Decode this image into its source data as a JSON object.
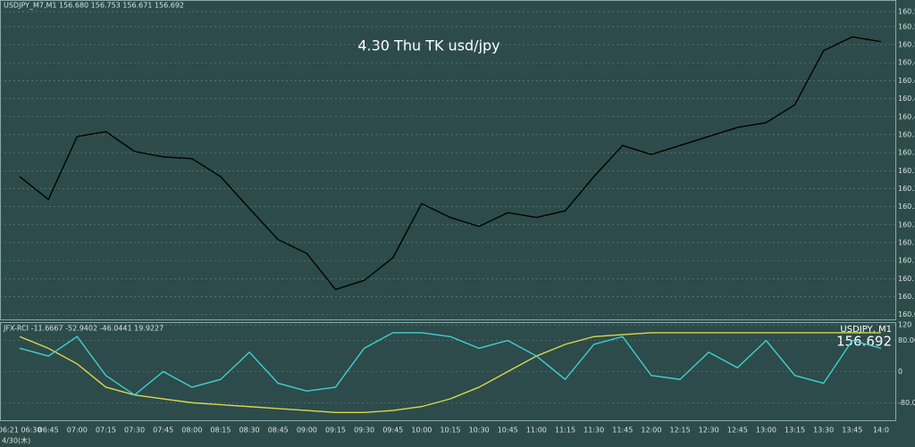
{
  "chart_data": [
    {
      "type": "line",
      "title": "USDJPY_M7,M1  156.680 156.753 156.671 156.692",
      "annotation": "4.30 Thu TK usd/jpy",
      "date_label": "4/30(木)",
      "categories": [
        "06:21 06:30",
        "06:45",
        "07:00",
        "07:15",
        "07:30",
        "07:45",
        "08:00",
        "08:15",
        "08:30",
        "08:45",
        "09:00",
        "09:15",
        "09:30",
        "09:45",
        "10:00",
        "10:15",
        "10:30",
        "10:45",
        "11:00",
        "11:15",
        "11:30",
        "11:45",
        "12:00",
        "12:15",
        "12:30",
        "12:45",
        "13:00",
        "13:15",
        "13:30",
        "13:45",
        "14:0"
      ],
      "series": [
        {
          "color": "#000000",
          "values": [
            160.305,
            160.267,
            160.372,
            160.38,
            160.347,
            160.338,
            160.335,
            160.305,
            160.252,
            160.2,
            160.177,
            160.117,
            160.132,
            160.17,
            160.26,
            160.237,
            160.222,
            160.245,
            160.237,
            160.248,
            160.305,
            160.357,
            160.342,
            160.357,
            160.372,
            160.387,
            160.395,
            160.425,
            160.515,
            160.538,
            160.53
          ]
        }
      ],
      "ylim": [
        160.067,
        160.598
      ],
      "yticks": [
        {
          "value": 160.58,
          "label": "160.580"
        },
        160.555,
        160.525,
        160.495,
        160.465,
        160.435,
        160.405,
        160.375,
        160.345,
        160.315,
        160.285,
        160.255,
        160.225,
        160.195,
        160.165,
        160.135,
        160.105,
        160.075
      ],
      "grid": true
    },
    {
      "type": "line",
      "title": "JFX-RCI -11.6667 -52.9402 -46.0441 19.9227",
      "symbol_label": "USDJPY, M1",
      "last_price": 156.692,
      "series": [
        {
          "color": "#d8d84a",
          "values": [
            90,
            60,
            20,
            -40,
            -60,
            -70,
            -80,
            -85,
            -90,
            -95,
            -100,
            -105,
            -105,
            -100,
            -90,
            -70,
            -40,
            0,
            40,
            70,
            90,
            95,
            100,
            100,
            100,
            100,
            100,
            100,
            100,
            100,
            100
          ]
        },
        {
          "color": "#3fd0d0",
          "values": [
            60,
            40,
            90,
            -10,
            -60,
            0,
            -40,
            -20,
            50,
            -30,
            -50,
            -40,
            60,
            100,
            100,
            90,
            60,
            80,
            40,
            -20,
            70,
            90,
            -10,
            -20,
            50,
            10,
            80,
            -10,
            -30,
            80,
            60
          ]
        }
      ],
      "ylim": [
        -125,
        125
      ],
      "yticks": [
        120,
        {
          "value": 80,
          "label": "80.0000"
        },
        0,
        {
          "value": -80,
          "label": "-80.0000"
        }
      ],
      "grid": true
    }
  ]
}
